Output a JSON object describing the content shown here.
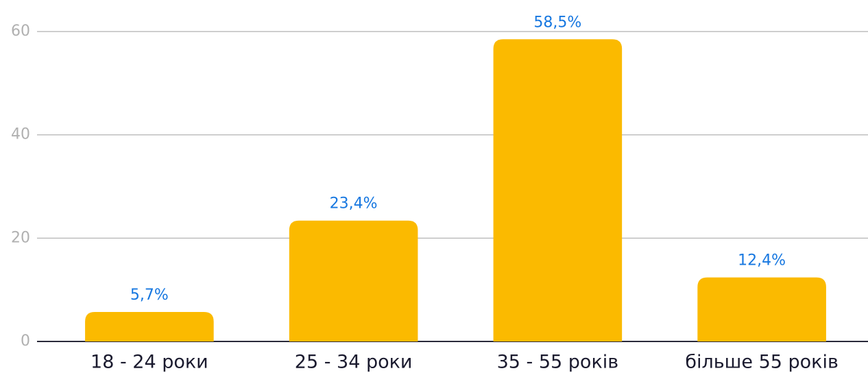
{
  "chart_data": {
    "type": "bar",
    "categories": [
      "18 - 24 роки",
      "25 - 34 роки",
      "35 - 55 років",
      "більше 55 років"
    ],
    "values": [
      5.7,
      23.4,
      58.5,
      12.4
    ],
    "value_labels": [
      "5,7%",
      "23,4%",
      "58,5%",
      "12,4%"
    ],
    "color": "#fbba00",
    "ylim": [
      0,
      60
    ],
    "yticks": [
      0,
      20,
      40,
      60
    ],
    "grid": true
  }
}
